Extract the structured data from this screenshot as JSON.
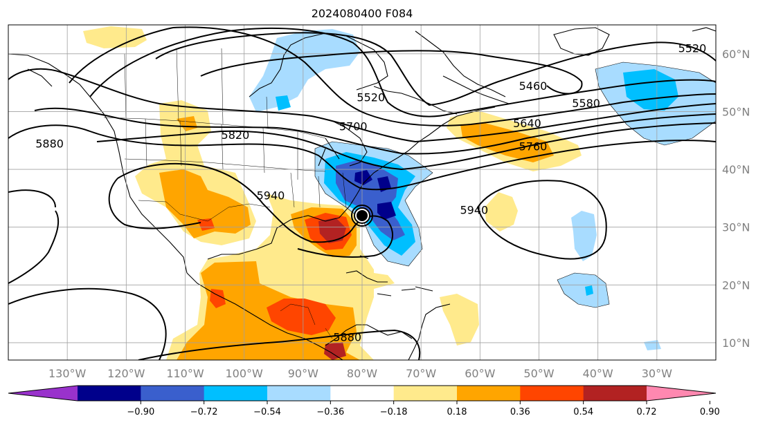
{
  "title": "2024080400 F084",
  "map": {
    "lon_range": [
      -140,
      -20
    ],
    "lat_range": [
      7,
      65
    ],
    "lon_ticks": [
      -130,
      -120,
      -110,
      -100,
      -90,
      -80,
      -70,
      -60,
      -50,
      -40,
      -30
    ],
    "lat_ticks": [
      10,
      20,
      30,
      40,
      50,
      60
    ],
    "lon_labels": [
      "130°W",
      "120°W",
      "110°W",
      "100°W",
      "90°W",
      "80°W",
      "70°W",
      "60°W",
      "50°W",
      "40°W",
      "30°W"
    ],
    "lat_labels": [
      "10°N",
      "20°N",
      "30°N",
      "40°N",
      "50°N",
      "60°N"
    ],
    "grid": true
  },
  "contour_labels": [
    {
      "text": "5520",
      "lon": -24,
      "lat": 61
    },
    {
      "text": "5520",
      "lon": -78.5,
      "lat": 52.5
    },
    {
      "text": "5460",
      "lon": -51,
      "lat": 54.5
    },
    {
      "text": "5580",
      "lon": -42,
      "lat": 51.5
    },
    {
      "text": "5640",
      "lon": -52,
      "lat": 48
    },
    {
      "text": "5700",
      "lon": -81.5,
      "lat": 47.5
    },
    {
      "text": "5760",
      "lon": -51,
      "lat": 44
    },
    {
      "text": "5820",
      "lon": -101.5,
      "lat": 46
    },
    {
      "text": "5880",
      "lon": -133,
      "lat": 44.5
    },
    {
      "text": "5880",
      "lon": -82.5,
      "lat": 11
    },
    {
      "text": "5940",
      "lon": -95.5,
      "lat": 35.5
    },
    {
      "text": "5940",
      "lon": -61,
      "lat": 33
    }
  ],
  "storm_marker": {
    "lon": -80,
    "lat": 32
  },
  "colorbar": {
    "colors": [
      "#9932cc",
      "#00008b",
      "#3a5fcd",
      "#00bfff",
      "#a8dcff",
      "#ffffff",
      "#ffea8c",
      "#ffa500",
      "#ff4500",
      "#b22222",
      "#ff88b0"
    ],
    "tick_labels": [
      "−0.90",
      "−0.72",
      "−0.54",
      "−0.36",
      "−0.18",
      "0.18",
      "0.36",
      "0.54",
      "0.72",
      "0.90"
    ]
  }
}
